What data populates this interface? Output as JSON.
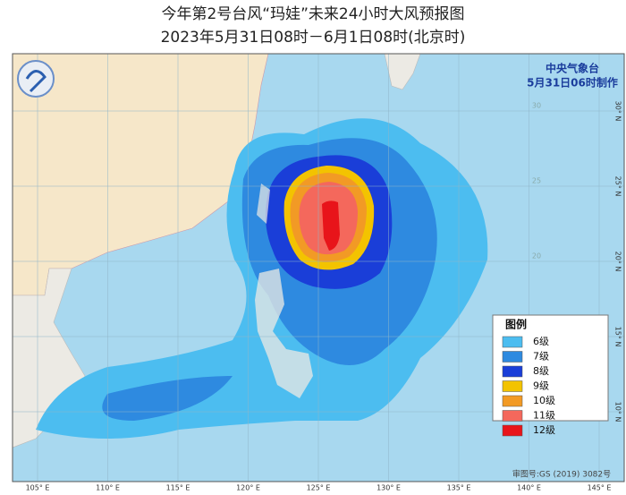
{
  "header": {
    "title": "今年第2号台风“玛娃”未来24小时大风预报图",
    "subtitle": "2023年5月31日08时－6月1日08时(北京时)"
  },
  "agency": {
    "name": "中央气象台",
    "issued": "5月31日06时制作"
  },
  "map": {
    "lon_ticks": [
      {
        "value": 105,
        "label": "105° E"
      },
      {
        "value": 110,
        "label": "110° E"
      },
      {
        "value": 115,
        "label": "115° E"
      },
      {
        "value": 120,
        "label": "120° E"
      },
      {
        "value": 125,
        "label": "125° E"
      },
      {
        "value": 130,
        "label": "130° E"
      },
      {
        "value": 135,
        "label": "135° E"
      },
      {
        "value": 140,
        "label": "140° E"
      },
      {
        "value": 145,
        "label": "145° E"
      }
    ],
    "lat_ticks": [
      {
        "value": 30,
        "label": "30° N"
      },
      {
        "value": 25,
        "label": "25° N"
      },
      {
        "value": 20,
        "label": "20° N"
      },
      {
        "value": 15,
        "label": "15° N"
      },
      {
        "value": 10,
        "label": "10° N"
      }
    ]
  },
  "legend": {
    "title": "图例",
    "items": [
      {
        "label": "6级",
        "color": "#4cbdf0"
      },
      {
        "label": "7级",
        "color": "#2e8ae0"
      },
      {
        "label": "8级",
        "color": "#1a3ed8"
      },
      {
        "label": "9级",
        "color": "#f3c300"
      },
      {
        "label": "10级",
        "color": "#f29a25"
      },
      {
        "label": "11级",
        "color": "#f4685c"
      },
      {
        "label": "12级",
        "color": "#e8141a"
      }
    ]
  },
  "footer": {
    "review": "审图号:GS (2019) 3082号"
  }
}
